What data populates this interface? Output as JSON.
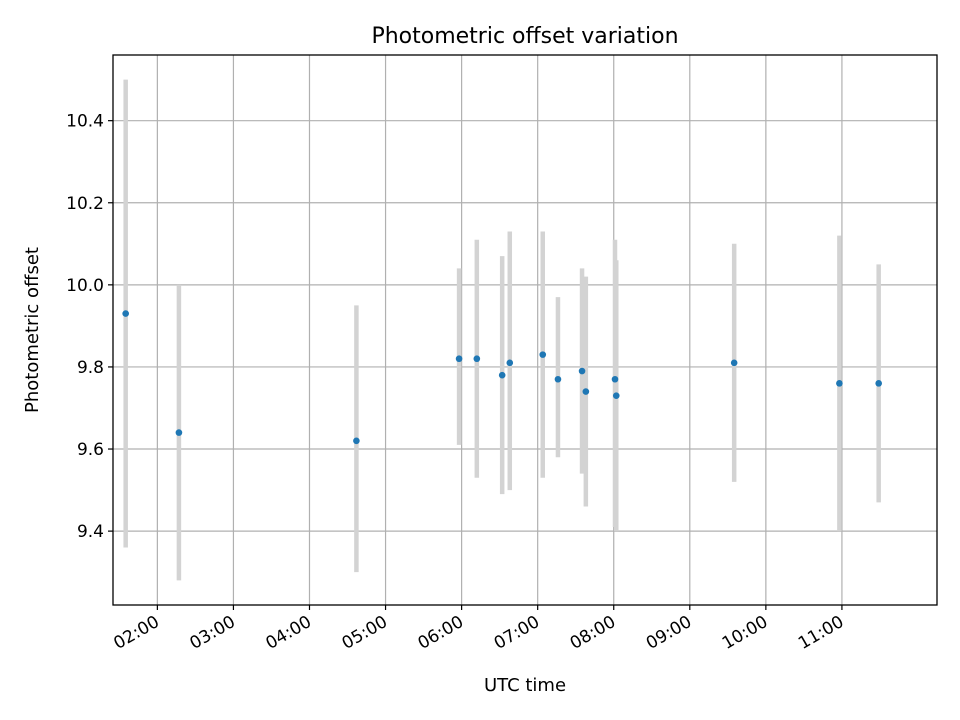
{
  "chart_data": {
    "type": "scatter",
    "title": "Photometric offset variation",
    "xlabel": "UTC time",
    "ylabel": "Photometric offset",
    "x_unit": "hours UTC",
    "xlim": [
      "01:25",
      "12:15"
    ],
    "ylim": [
      9.22,
      10.56
    ],
    "x_ticks": [
      "02:00",
      "03:00",
      "04:00",
      "05:00",
      "06:00",
      "07:00",
      "08:00",
      "09:00",
      "10:00",
      "11:00"
    ],
    "y_ticks": [
      "9.4",
      "9.6",
      "9.8",
      "10.0",
      "10.2",
      "10.4"
    ],
    "grid": true,
    "series": [
      {
        "marker_color": "#1f77b4",
        "errorbar_color": "#d3d3d3",
        "points": [
          {
            "x": "01:35",
            "y": 9.93,
            "yerr_low": 9.36,
            "yerr_high": 10.5
          },
          {
            "x": "02:17",
            "y": 9.64,
            "yerr_low": 9.28,
            "yerr_high": 10.0
          },
          {
            "x": "04:37",
            "y": 9.62,
            "yerr_low": 9.3,
            "yerr_high": 9.95
          },
          {
            "x": "05:58",
            "y": 9.82,
            "yerr_low": 9.61,
            "yerr_high": 10.04
          },
          {
            "x": "06:12",
            "y": 9.82,
            "yerr_low": 9.53,
            "yerr_high": 10.11
          },
          {
            "x": "06:32",
            "y": 9.78,
            "yerr_low": 9.49,
            "yerr_high": 10.07
          },
          {
            "x": "06:38",
            "y": 9.81,
            "yerr_low": 9.5,
            "yerr_high": 10.13
          },
          {
            "x": "07:04",
            "y": 9.83,
            "yerr_low": 9.53,
            "yerr_high": 10.13
          },
          {
            "x": "07:16",
            "y": 9.77,
            "yerr_low": 9.58,
            "yerr_high": 9.97
          },
          {
            "x": "07:35",
            "y": 9.79,
            "yerr_low": 9.54,
            "yerr_high": 10.04
          },
          {
            "x": "07:38",
            "y": 9.74,
            "yerr_low": 9.46,
            "yerr_high": 10.02
          },
          {
            "x": "08:01",
            "y": 9.77,
            "yerr_low": 9.41,
            "yerr_high": 10.11
          },
          {
            "x": "08:02",
            "y": 9.73,
            "yerr_low": 9.4,
            "yerr_high": 10.06
          },
          {
            "x": "09:35",
            "y": 9.81,
            "yerr_low": 9.52,
            "yerr_high": 10.1
          },
          {
            "x": "10:58",
            "y": 9.76,
            "yerr_low": 9.4,
            "yerr_high": 10.12
          },
          {
            "x": "11:29",
            "y": 9.76,
            "yerr_low": 9.47,
            "yerr_high": 10.05
          }
        ]
      }
    ]
  }
}
